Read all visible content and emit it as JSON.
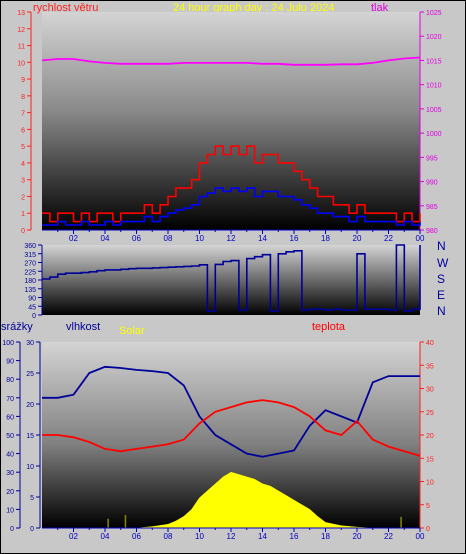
{
  "header": {
    "wind_label": "rychlost větru",
    "title": "24 hour graph day : 24 Julu 2024",
    "pressure_label": "tlak"
  },
  "labels": {
    "rain": "srážky",
    "humidity": "vlhkost",
    "solar": "Solar",
    "temperature": "teplota"
  },
  "compass": [
    "N",
    "W",
    "S",
    "E",
    "N"
  ],
  "colors": {
    "wind_speed": "#ff0000",
    "wind_avg": "#0000ff",
    "pressure": "#ff00ff",
    "direction": "#000099",
    "humidity": "#000099",
    "temperature": "#ff0000",
    "solar": "#ffff00",
    "rain": "#888800",
    "axis_left": "#ff2020",
    "axis_right": "#e000e0",
    "bottom_axis": "#0000c0"
  },
  "x_ticks": [
    "02",
    "04",
    "06",
    "08",
    "10",
    "12",
    "14",
    "16",
    "18",
    "20",
    "22",
    "00"
  ],
  "chart_data": [
    {
      "type": "line",
      "title": "24 hour graph day : 24 Julu 2024",
      "x_unit": "hour",
      "xlim": [
        0,
        24
      ],
      "ylim_left": [
        0,
        13
      ],
      "ylim_right": [
        980,
        1025
      ],
      "yticks_left": [
        "0",
        "1",
        "2",
        "3",
        "4",
        "5",
        "6",
        "7",
        "8",
        "9",
        "10",
        "11",
        "12",
        "13"
      ],
      "yticks_right": [
        "980",
        "985",
        "990",
        "995",
        "1000",
        "1005",
        "1010",
        "1015",
        "1020",
        "1025"
      ],
      "series": [
        {
          "name": "rychlost větru",
          "axis": "left",
          "x": [
            0,
            0.5,
            1,
            1.5,
            2,
            2.5,
            3,
            3.5,
            4,
            4.5,
            5,
            5.5,
            6,
            6.5,
            7,
            7.5,
            8,
            8.5,
            9,
            9.5,
            10,
            10.5,
            11,
            11.5,
            12,
            12.5,
            13,
            13.5,
            14,
            14.5,
            15,
            15.5,
            16,
            16.5,
            17,
            17.5,
            18,
            18.5,
            19,
            19.5,
            20,
            20.5,
            21,
            21.5,
            22,
            22.5,
            23,
            23.5,
            24
          ],
          "values": [
            1,
            0.5,
            1,
            1,
            0.5,
            1,
            0.5,
            1,
            1,
            0.5,
            1,
            1,
            1,
            1.5,
            1,
            1.5,
            2,
            2.5,
            2.5,
            3,
            4,
            4.5,
            5,
            4.5,
            5,
            4.5,
            5,
            4,
            4.5,
            4.5,
            4,
            4,
            3.5,
            3,
            2.5,
            2,
            2,
            1.5,
            1.5,
            1,
            1.5,
            1,
            1,
            1,
            1,
            0.5,
            1,
            0.5,
            1
          ]
        },
        {
          "name": "průměrná rychlost",
          "axis": "left",
          "x": [
            0,
            0.5,
            1,
            1.5,
            2,
            2.5,
            3,
            3.5,
            4,
            4.5,
            5,
            5.5,
            6,
            6.5,
            7,
            7.5,
            8,
            8.5,
            9,
            9.5,
            10,
            10.5,
            11,
            11.5,
            12,
            12.5,
            13,
            13.5,
            14,
            14.5,
            15,
            15.5,
            16,
            16.5,
            17,
            17.5,
            18,
            18.5,
            19,
            19.5,
            20,
            20.5,
            21,
            21.5,
            22,
            22.5,
            23,
            23.5,
            24
          ],
          "values": [
            0.3,
            0.3,
            0.5,
            0.3,
            0.3,
            0.5,
            0.3,
            0.3,
            0.5,
            0.3,
            0.5,
            0.5,
            0.5,
            0.8,
            0.5,
            0.8,
            1,
            1.2,
            1.3,
            1.5,
            2,
            2.2,
            2.5,
            2.3,
            2.5,
            2.3,
            2.5,
            2,
            2.3,
            2.3,
            2,
            2,
            1.8,
            1.5,
            1.3,
            1,
            1,
            0.8,
            0.8,
            0.5,
            0.8,
            0.5,
            0.5,
            0.5,
            0.5,
            0.3,
            0.5,
            0.3,
            0.5
          ]
        },
        {
          "name": "tlak",
          "axis": "right",
          "x": [
            0,
            1,
            2,
            3,
            4,
            5,
            6,
            7,
            8,
            9,
            10,
            11,
            12,
            13,
            14,
            15,
            16,
            17,
            18,
            19,
            20,
            21,
            22,
            23,
            24
          ],
          "values": [
            1015,
            1015.3,
            1015.3,
            1014.8,
            1014.5,
            1014.3,
            1014.3,
            1014.3,
            1014.3,
            1014.5,
            1014.5,
            1014.5,
            1014.5,
            1014.5,
            1014.3,
            1014.3,
            1014.1,
            1014.1,
            1014.1,
            1014.2,
            1014.2,
            1014.5,
            1015,
            1015.4,
            1015.6
          ]
        }
      ]
    },
    {
      "type": "line",
      "x_unit": "hour",
      "xlim": [
        0,
        24
      ],
      "ylim": [
        0,
        360
      ],
      "yticks": [
        "0",
        "45",
        "90",
        "135",
        "180",
        "225",
        "270",
        "315",
        "360"
      ],
      "series": [
        {
          "name": "směr větru",
          "x": [
            0,
            0.5,
            1,
            1.5,
            2,
            2.5,
            3,
            3.5,
            4,
            4.5,
            5,
            5.5,
            6,
            6.5,
            7,
            7.5,
            8,
            8.5,
            9,
            9.5,
            10,
            10.5,
            11,
            11.5,
            12,
            12.5,
            13,
            13.5,
            14,
            14.5,
            15,
            15.5,
            16,
            16.5,
            17,
            17.5,
            18,
            18.5,
            19,
            19.5,
            20,
            20.5,
            21,
            21.5,
            22,
            22.5,
            23,
            23.5,
            24
          ],
          "values": [
            185,
            195,
            210,
            215,
            215,
            218,
            222,
            228,
            232,
            232,
            235,
            238,
            240,
            240,
            242,
            244,
            246,
            248,
            250,
            252,
            258,
            20,
            260,
            275,
            280,
            25,
            290,
            300,
            310,
            20,
            315,
            325,
            330,
            25,
            30,
            30,
            25,
            30,
            25,
            25,
            315,
            30,
            30,
            30,
            25,
            360,
            20,
            30,
            360
          ]
        }
      ]
    },
    {
      "type": "line",
      "x_unit": "hour",
      "xlim": [
        0,
        24
      ],
      "ylim_rain": [
        0,
        100
      ],
      "ylim_humidity": [
        0,
        30
      ],
      "ylim_temperature": [
        0,
        40
      ],
      "yticks_rain": [
        "0",
        "10",
        "20",
        "30",
        "40",
        "50",
        "60",
        "70",
        "80",
        "90",
        "100"
      ],
      "yticks_humidity": [
        "0",
        "5",
        "10",
        "15",
        "20",
        "25",
        "30"
      ],
      "yticks_temperature": [
        "0",
        "5",
        "10",
        "15",
        "20",
        "25",
        "30",
        "35",
        "40"
      ],
      "series": [
        {
          "name": "vlhkost",
          "axis": "humidity",
          "x": [
            0,
            1,
            2,
            3,
            4,
            5,
            6,
            7,
            8,
            9,
            10,
            11,
            12,
            13,
            14,
            15,
            16,
            17,
            18,
            19,
            20,
            21,
            22,
            23,
            24
          ],
          "values": [
            21,
            21,
            21.5,
            25,
            26,
            25.8,
            25.5,
            25.3,
            25,
            23,
            18,
            15,
            13.5,
            12,
            11.5,
            12,
            12.5,
            16.5,
            19,
            18,
            17,
            23.5,
            24.5,
            24.5,
            24.5
          ]
        },
        {
          "name": "teplota",
          "axis": "temperature",
          "x": [
            0,
            1,
            2,
            3,
            4,
            5,
            6,
            7,
            8,
            9,
            10,
            11,
            12,
            13,
            14,
            15,
            16,
            17,
            18,
            19,
            20,
            21,
            22,
            23,
            24
          ],
          "values": [
            20,
            20,
            19.5,
            18.5,
            17,
            16.5,
            17,
            17.5,
            18,
            19,
            22.5,
            25,
            26,
            27,
            27.5,
            27,
            26,
            24,
            21,
            20,
            23,
            19,
            17.5,
            16.5,
            15.5
          ]
        },
        {
          "name": "Solar",
          "axis": "temperature",
          "x": [
            0,
            4,
            5,
            6,
            7,
            8,
            8.5,
            9,
            9.5,
            10,
            10.5,
            11,
            11.5,
            12,
            12.5,
            13,
            13.5,
            14,
            14.5,
            15,
            15.5,
            16,
            16.5,
            17,
            17.5,
            18,
            19,
            20,
            21,
            24
          ],
          "values": [
            0,
            0,
            0,
            0,
            0.3,
            0.8,
            1.5,
            2.5,
            4,
            6.5,
            8,
            9.5,
            11,
            12,
            11.5,
            11,
            10.5,
            9.5,
            9,
            8,
            7,
            6,
            5,
            4,
            2.5,
            1.2,
            0.5,
            0.2,
            0,
            0
          ]
        },
        {
          "name": "srážky",
          "axis": "rain",
          "x": [
            0,
            4.2,
            5.3,
            10,
            22.8,
            24
          ],
          "values": [
            0,
            5,
            7,
            0,
            6,
            0
          ]
        }
      ]
    }
  ]
}
